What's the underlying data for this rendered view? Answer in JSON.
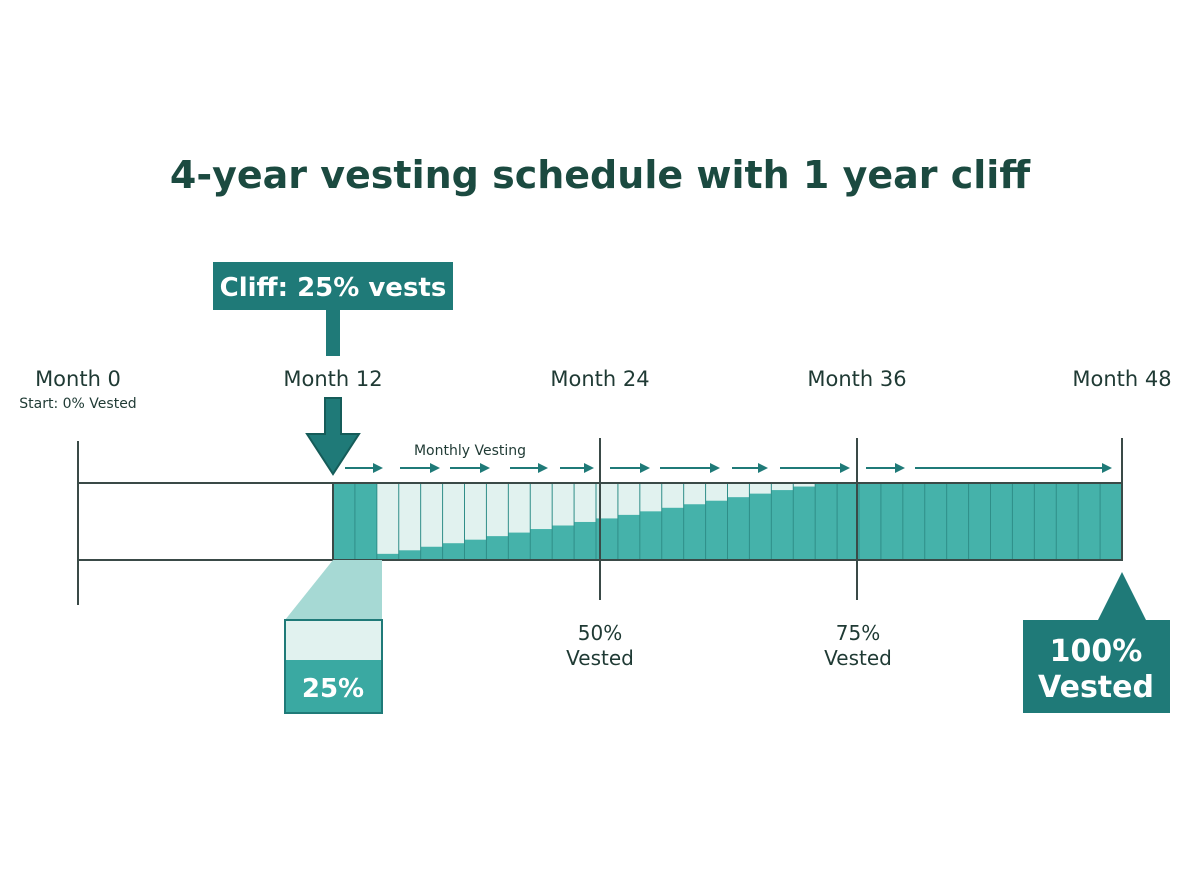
{
  "title": "4-year vesting schedule with 1 year cliff",
  "colors": {
    "title": "#1b4a40",
    "text": "#1f3a34",
    "dark_teal": "#1f7a78",
    "mid_teal": "#3aa9a2",
    "fill_teal": "#45b2aa",
    "light_fill": "#e1f2ef",
    "funnel": "#a6d9d4",
    "line": "#3a4a47"
  },
  "cliff_callout": {
    "label": "Cliff: 25% vests"
  },
  "months": [
    {
      "month": 0,
      "label": "Month 0",
      "sublabel": "Start: 0% Vested"
    },
    {
      "month": 12,
      "label": "Month 12"
    },
    {
      "month": 24,
      "label": "Month 24"
    },
    {
      "month": 36,
      "label": "Month 36"
    },
    {
      "month": 48,
      "label": "Month 48"
    }
  ],
  "monthly_vesting_label": "Monthly Vesting",
  "cliff_detail": {
    "label": "25%"
  },
  "milestones": [
    {
      "month": 24,
      "line1": "50%",
      "line2": "Vested"
    },
    {
      "month": 36,
      "line1": "75%",
      "line2": "Vested"
    }
  ],
  "final_callout": {
    "month": 48,
    "line1": "100%",
    "line2": "Vested"
  },
  "vesting": {
    "total_months": 48,
    "cliff_month": 12,
    "vested_at_cliff_percent": 25,
    "fully_vested_month": 48
  }
}
